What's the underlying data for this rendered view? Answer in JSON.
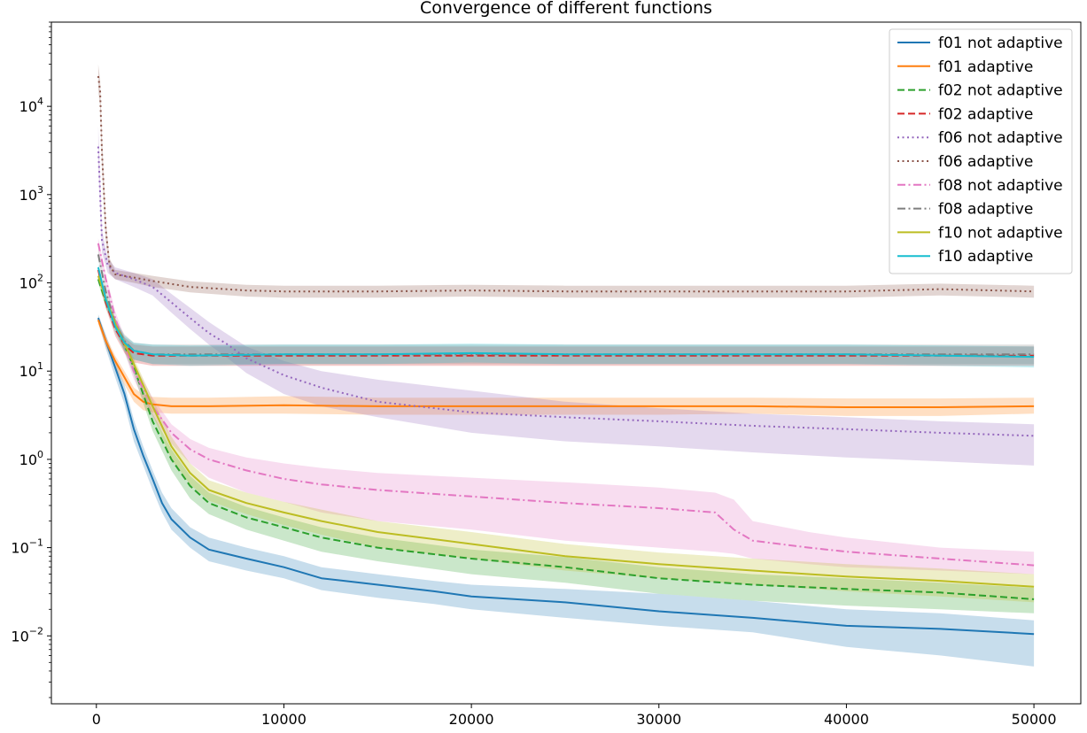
{
  "chart_data": {
    "type": "line",
    "title": "Convergence of different functions",
    "xlabel": "",
    "ylabel": "",
    "xlim": [
      -2400,
      52500
    ],
    "ylim": [
      0.0017,
      90000
    ],
    "yscale": "log",
    "x_ticks": [
      {
        "value": 0,
        "label": "0"
      },
      {
        "value": 10000,
        "label": "10000"
      },
      {
        "value": 20000,
        "label": "20000"
      },
      {
        "value": 30000,
        "label": "30000"
      },
      {
        "value": 40000,
        "label": "40000"
      },
      {
        "value": 50000,
        "label": "50000"
      }
    ],
    "y_ticks": [
      {
        "value": 0.01,
        "base": "10",
        "exp": "−2"
      },
      {
        "value": 0.1,
        "base": "10",
        "exp": "−1"
      },
      {
        "value": 1,
        "base": "10",
        "exp": "0"
      },
      {
        "value": 10,
        "base": "10",
        "exp": "1"
      },
      {
        "value": 100,
        "base": "10",
        "exp": "2"
      },
      {
        "value": 1000,
        "base": "10",
        "exp": "3"
      },
      {
        "value": 10000,
        "base": "10",
        "exp": "4"
      }
    ],
    "grid": false,
    "legend_position": "top-right",
    "series": [
      {
        "name": "f01 not adaptive",
        "color": "#1f77b4",
        "dash": "solid",
        "x": [
          100,
          500,
          1000,
          1500,
          2000,
          2500,
          3000,
          3500,
          4000,
          5000,
          6000,
          8000,
          10000,
          12000,
          15000,
          18000,
          20000,
          25000,
          30000,
          35000,
          40000,
          45000,
          50000
        ],
        "y": [
          40,
          22,
          11,
          5.5,
          2.2,
          1.1,
          0.6,
          0.32,
          0.21,
          0.13,
          0.095,
          0.075,
          0.06,
          0.045,
          0.038,
          0.032,
          0.028,
          0.024,
          0.019,
          0.016,
          0.013,
          0.012,
          0.0105
        ],
        "lo": [
          36,
          18,
          8.5,
          4.2,
          1.6,
          0.85,
          0.45,
          0.25,
          0.16,
          0.1,
          0.07,
          0.055,
          0.045,
          0.033,
          0.027,
          0.023,
          0.02,
          0.016,
          0.013,
          0.011,
          0.0075,
          0.006,
          0.0045
        ],
        "hi": [
          44,
          26,
          13,
          7,
          2.8,
          1.4,
          0.75,
          0.42,
          0.28,
          0.17,
          0.13,
          0.1,
          0.08,
          0.06,
          0.05,
          0.042,
          0.038,
          0.034,
          0.03,
          0.025,
          0.02,
          0.018,
          0.015
        ]
      },
      {
        "name": "f01 adaptive",
        "color": "#ff7f0e",
        "dash": "solid",
        "x": [
          100,
          500,
          1000,
          1500,
          2000,
          2500,
          3000,
          4000,
          6000,
          10000,
          15000,
          20000,
          25000,
          30000,
          35000,
          40000,
          45000,
          50000
        ],
        "y": [
          38,
          22,
          13,
          8.5,
          5.5,
          4.5,
          4.2,
          4.0,
          4.0,
          4.1,
          4.0,
          4.0,
          4.0,
          4.0,
          4.0,
          3.9,
          3.9,
          4.0
        ],
        "lo": [
          34,
          19,
          11,
          7,
          4.5,
          3.6,
          3.4,
          3.3,
          3.3,
          3.3,
          3.2,
          3.2,
          3.2,
          3.2,
          3.3,
          3.1,
          3.1,
          3.3
        ],
        "hi": [
          42,
          25,
          15,
          10,
          6.5,
          5.4,
          5.1,
          5.0,
          5.0,
          5.2,
          5.0,
          5.0,
          5.0,
          5.0,
          5.0,
          4.9,
          4.9,
          5.0
        ]
      },
      {
        "name": "f02 not adaptive",
        "color": "#2ca02c",
        "dash": "dashed",
        "x": [
          100,
          500,
          1000,
          2000,
          3000,
          4000,
          5000,
          6000,
          8000,
          10000,
          12000,
          15000,
          20000,
          25000,
          30000,
          35000,
          40000,
          45000,
          50000
        ],
        "y": [
          110,
          60,
          35,
          11,
          2.7,
          1.0,
          0.5,
          0.32,
          0.22,
          0.17,
          0.13,
          0.1,
          0.075,
          0.06,
          0.045,
          0.038,
          0.034,
          0.031,
          0.026
        ],
        "lo": [
          100,
          52,
          30,
          9,
          2.1,
          0.75,
          0.36,
          0.24,
          0.16,
          0.12,
          0.09,
          0.07,
          0.05,
          0.04,
          0.03,
          0.025,
          0.022,
          0.02,
          0.018
        ],
        "hi": [
          120,
          68,
          40,
          13,
          3.3,
          1.3,
          0.65,
          0.42,
          0.29,
          0.22,
          0.17,
          0.13,
          0.095,
          0.078,
          0.06,
          0.05,
          0.045,
          0.04,
          0.035
        ]
      },
      {
        "name": "f02 adaptive",
        "color": "#d62728",
        "dash": "dashed",
        "x": [
          100,
          500,
          1000,
          1500,
          2000,
          3000,
          5000,
          10000,
          15000,
          20000,
          25000,
          30000,
          35000,
          40000,
          45000,
          50000
        ],
        "y": [
          140,
          60,
          30,
          20,
          16,
          15,
          15,
          15,
          15,
          15,
          15,
          15,
          15,
          15,
          15,
          15
        ],
        "lo": [
          125,
          52,
          25,
          16,
          12.5,
          11.5,
          11.5,
          11.5,
          11.5,
          11.5,
          11.5,
          11.5,
          11.5,
          11.5,
          11.5,
          11.5
        ],
        "hi": [
          155,
          70,
          36,
          24,
          20,
          19,
          19,
          19,
          19,
          19,
          19,
          19,
          19,
          19,
          19,
          19
        ]
      },
      {
        "name": "f06 not adaptive",
        "color": "#9467bd",
        "dash": "dotted",
        "x": [
          100,
          300,
          600,
          1000,
          2000,
          3000,
          4000,
          5000,
          6000,
          7000,
          8000,
          10000,
          12000,
          15000,
          20000,
          25000,
          30000,
          35000,
          40000,
          45000,
          50000
        ],
        "y": [
          3500,
          300,
          160,
          130,
          110,
          90,
          60,
          40,
          27,
          20,
          14,
          9,
          6.5,
          4.5,
          3.4,
          3.0,
          2.7,
          2.4,
          2.2,
          2.0,
          1.85
        ],
        "lo": [
          2200,
          220,
          130,
          110,
          90,
          72,
          46,
          30,
          20,
          14,
          9.5,
          5.5,
          4.0,
          3.0,
          2.0,
          1.6,
          1.4,
          1.2,
          1.05,
          0.95,
          0.85
        ],
        "hi": [
          6000,
          400,
          190,
          150,
          130,
          110,
          75,
          52,
          36,
          26,
          19,
          13,
          10,
          8,
          6,
          4.5,
          3.8,
          3.3,
          3.0,
          2.7,
          2.5
        ]
      },
      {
        "name": "f06 adaptive",
        "color": "#8c564b",
        "dash": "dotted",
        "x": [
          100,
          200,
          300,
          500,
          700,
          1000,
          2000,
          3000,
          5000,
          8000,
          10000,
          15000,
          20000,
          25000,
          30000,
          35000,
          40000,
          45000,
          50000
        ],
        "y": [
          22000,
          15000,
          3000,
          400,
          160,
          125,
          115,
          105,
          90,
          82,
          80,
          80,
          82,
          80,
          80,
          80,
          80,
          85,
          80
        ],
        "lo": [
          15000,
          10000,
          2000,
          300,
          130,
          110,
          100,
          90,
          78,
          70,
          68,
          68,
          70,
          68,
          68,
          68,
          68,
          72,
          68
        ],
        "hi": [
          30000,
          20000,
          4500,
          520,
          190,
          140,
          130,
          120,
          104,
          95,
          93,
          93,
          95,
          93,
          93,
          93,
          93,
          98,
          93
        ]
      },
      {
        "name": "f08 not adaptive",
        "color": "#e377c2",
        "dash": "dashdot",
        "x": [
          100,
          500,
          1000,
          2000,
          3000,
          4000,
          5000,
          6000,
          8000,
          10000,
          12000,
          15000,
          20000,
          25000,
          30000,
          33000,
          34000,
          35000,
          38000,
          40000,
          45000,
          50000
        ],
        "y": [
          280,
          110,
          40,
          10,
          4.0,
          2.0,
          1.3,
          1.0,
          0.75,
          0.6,
          0.52,
          0.45,
          0.38,
          0.32,
          0.28,
          0.25,
          0.16,
          0.12,
          0.1,
          0.09,
          0.075,
          0.063
        ],
        "lo": [
          240,
          95,
          33,
          8,
          3.0,
          1.5,
          0.9,
          0.62,
          0.42,
          0.33,
          0.25,
          0.2,
          0.16,
          0.12,
          0.1,
          0.09,
          0.085,
          0.075,
          0.065,
          0.06,
          0.055,
          0.05
        ],
        "hi": [
          320,
          125,
          48,
          12.5,
          5.0,
          2.5,
          1.7,
          1.35,
          1.05,
          0.9,
          0.8,
          0.7,
          0.62,
          0.55,
          0.48,
          0.42,
          0.35,
          0.2,
          0.15,
          0.13,
          0.1,
          0.09
        ]
      },
      {
        "name": "f08 adaptive",
        "color": "#7f7f7f",
        "dash": "dashdot",
        "x": [
          100,
          500,
          1000,
          1500,
          2000,
          3000,
          5000,
          10000,
          15000,
          20000,
          25000,
          30000,
          35000,
          40000,
          45000,
          50000
        ],
        "y": [
          210,
          80,
          35,
          22,
          17,
          15.5,
          15.5,
          15.5,
          15.5,
          15.5,
          15.5,
          15.5,
          15.5,
          15.5,
          15.5,
          15.5
        ],
        "lo": [
          185,
          70,
          30,
          18,
          13.5,
          12,
          12,
          12,
          12,
          12,
          12,
          12,
          12,
          12,
          12,
          12
        ],
        "hi": [
          240,
          92,
          40,
          26,
          21,
          20,
          20,
          20,
          20,
          20,
          20,
          20,
          20,
          20,
          20,
          20
        ]
      },
      {
        "name": "f10 not adaptive",
        "color": "#bcbd22",
        "dash": "solid",
        "x": [
          100,
          500,
          1000,
          2000,
          3000,
          4000,
          5000,
          6000,
          8000,
          10000,
          12000,
          15000,
          20000,
          25000,
          30000,
          35000,
          40000,
          45000,
          50000
        ],
        "y": [
          120,
          65,
          35,
          12,
          4.0,
          1.4,
          0.7,
          0.45,
          0.32,
          0.25,
          0.2,
          0.15,
          0.11,
          0.08,
          0.065,
          0.055,
          0.047,
          0.042,
          0.036
        ],
        "lo": [
          108,
          56,
          30,
          10,
          3.2,
          1.0,
          0.52,
          0.34,
          0.24,
          0.18,
          0.14,
          0.1,
          0.075,
          0.055,
          0.045,
          0.038,
          0.032,
          0.028,
          0.024
        ],
        "hi": [
          132,
          75,
          40,
          14,
          4.8,
          1.8,
          0.9,
          0.58,
          0.42,
          0.33,
          0.27,
          0.2,
          0.15,
          0.11,
          0.088,
          0.075,
          0.065,
          0.058,
          0.05
        ]
      },
      {
        "name": "f10 adaptive",
        "color": "#17becf",
        "dash": "solid",
        "x": [
          100,
          500,
          1000,
          1500,
          2000,
          3000,
          5000,
          10000,
          15000,
          20000,
          25000,
          30000,
          35000,
          40000,
          45000,
          50000
        ],
        "y": [
          150,
          65,
          32,
          21,
          17,
          15.5,
          15,
          15.5,
          15.5,
          16,
          15.5,
          15.5,
          15.5,
          15.5,
          15,
          14.5
        ],
        "lo": [
          135,
          56,
          27,
          17,
          13.5,
          12,
          11.5,
          12,
          12,
          12.5,
          12,
          12,
          12,
          12,
          11.5,
          11
        ],
        "hi": [
          165,
          76,
          38,
          25,
          21,
          20,
          19.5,
          20,
          20,
          20.5,
          20,
          20,
          20,
          20,
          19.5,
          19
        ]
      }
    ]
  }
}
